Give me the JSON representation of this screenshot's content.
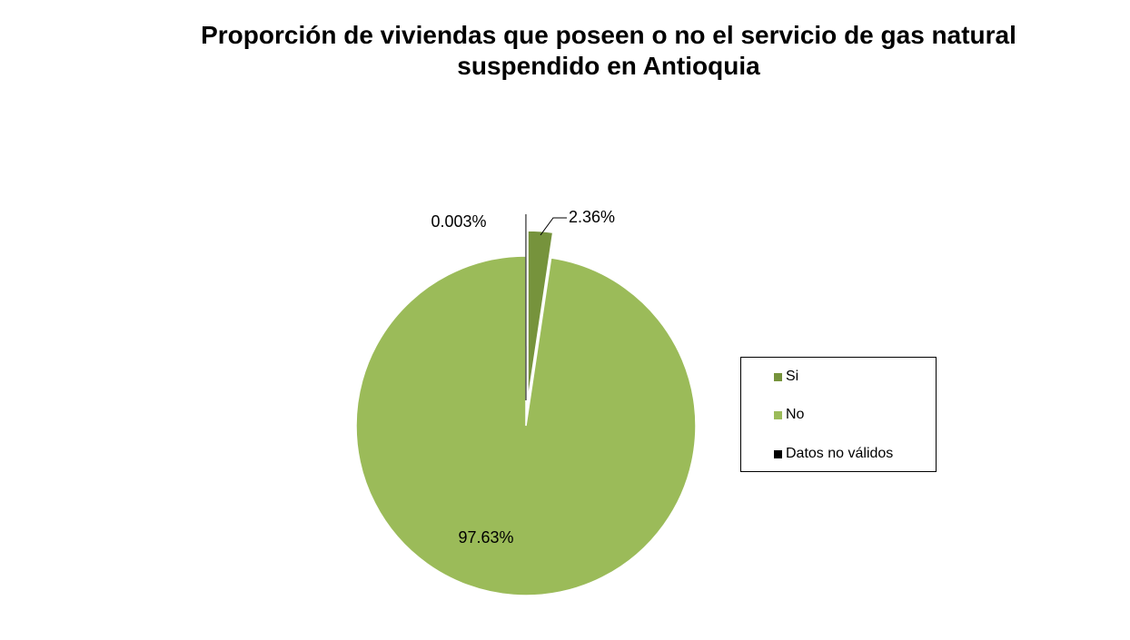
{
  "chart_data": {
    "type": "pie",
    "title": "Proporción de viviendas que poseen o no el servicio de gas natural suspendido en Antioquia",
    "title_lines": [
      "Proporción de viviendas que poseen o no el servicio de gas natural",
      "suspendido en Antioquia"
    ],
    "slices": [
      {
        "label": "Si",
        "value": 2.36,
        "data_label": "2.36%",
        "color": "#76933c",
        "exploded": true
      },
      {
        "label": "No",
        "value": 97.63,
        "data_label": "97.63%",
        "color": "#9bbb59",
        "exploded": false
      },
      {
        "label": "Datos no válidos",
        "value": 0.003,
        "data_label": "0.003%",
        "color": "#000000",
        "exploded": true
      }
    ],
    "start_angle": "top",
    "direction": "clockwise",
    "legend": {
      "placement": "right",
      "border": true
    }
  }
}
